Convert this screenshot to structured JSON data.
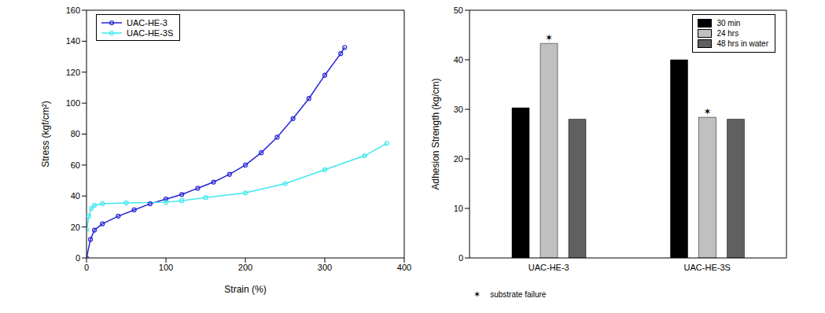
{
  "chart_data": [
    {
      "type": "line",
      "x_label": "Strain (%)",
      "y_label": "Stress (kgf/cm²)",
      "xlim": [
        0,
        400
      ],
      "xticks": [
        0,
        100,
        200,
        300,
        400
      ],
      "ylim": [
        0,
        160
      ],
      "yticks": [
        0,
        20,
        40,
        60,
        80,
        100,
        120,
        140,
        160
      ],
      "legend": "upper left",
      "series": [
        {
          "name": "UAC-HE-3",
          "color": "#2424d8",
          "marker": "circle",
          "x": [
            0,
            5,
            10,
            20,
            40,
            60,
            80,
            100,
            120,
            140,
            160,
            180,
            200,
            220,
            240,
            260,
            280,
            300,
            320,
            325
          ],
          "values": [
            0,
            12,
            18,
            22,
            27,
            31,
            35,
            38,
            41,
            45,
            49,
            54,
            60,
            68,
            78,
            90,
            103,
            118,
            132,
            136
          ]
        },
        {
          "name": "UAC-HE-3S",
          "color": "#3ee8ee",
          "marker": "circle",
          "x": [
            0,
            3,
            6,
            10,
            20,
            50,
            100,
            120,
            150,
            200,
            250,
            300,
            350,
            378
          ],
          "values": [
            18,
            27,
            32,
            34,
            35,
            35.5,
            36,
            37,
            39,
            42,
            48,
            57,
            66,
            74
          ]
        }
      ]
    },
    {
      "type": "bar",
      "y_label": "Adhesion Strength (kg/cm)",
      "categories": [
        "UAC-HE-3",
        "UAC-HE-3S"
      ],
      "ylim": [
        0,
        50
      ],
      "yticks": [
        0,
        10,
        20,
        30,
        40,
        50
      ],
      "legend": "upper right",
      "footnote": {
        "symbol": "✶",
        "text": "substrate failure"
      },
      "series": [
        {
          "name": "30 min",
          "color": "#000000",
          "values": [
            30.3,
            40
          ]
        },
        {
          "name": "24 hrs",
          "color": "#c0c0c0",
          "values": [
            43.3,
            28.4
          ],
          "substrate_failure": [
            true,
            true
          ]
        },
        {
          "name": "48 hrs in water",
          "color": "#606060",
          "values": [
            28,
            28
          ]
        }
      ]
    }
  ]
}
